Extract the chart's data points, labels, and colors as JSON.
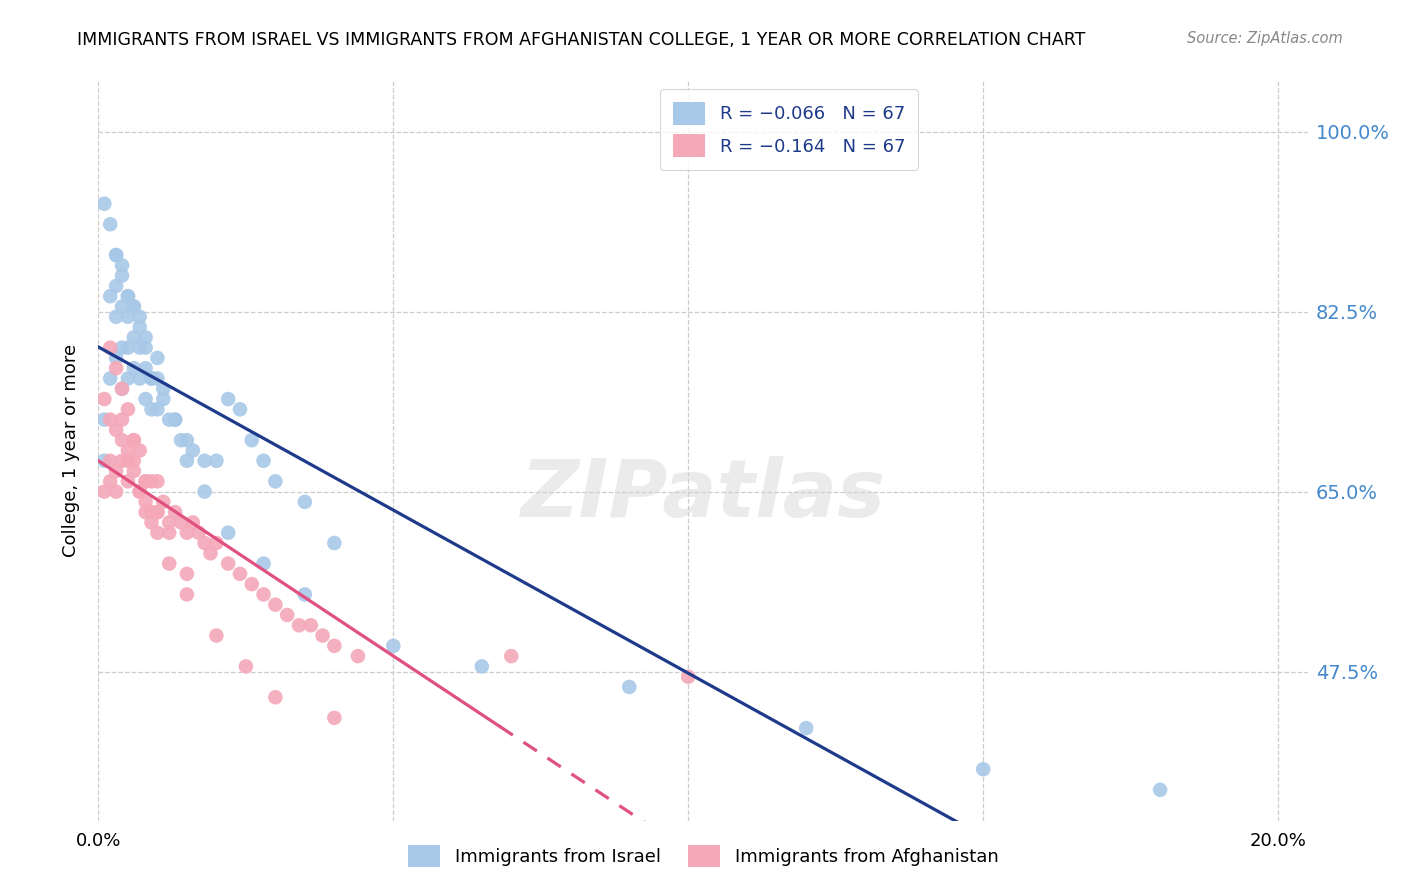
{
  "title": "IMMIGRANTS FROM ISRAEL VS IMMIGRANTS FROM AFGHANISTAN COLLEGE, 1 YEAR OR MORE CORRELATION CHART",
  "source": "Source: ZipAtlas.com",
  "ylabel": "College, 1 year or more",
  "ytick_labels": [
    "100.0%",
    "82.5%",
    "65.0%",
    "47.5%"
  ],
  "ytick_values": [
    1.0,
    0.825,
    0.65,
    0.475
  ],
  "ylim": [
    0.33,
    1.05
  ],
  "xlim": [
    0.0,
    0.205
  ],
  "color_israel": "#a8c8e8",
  "color_afghanistan": "#f4a8b8",
  "line_color_israel": "#1e3a8a",
  "line_color_afghanistan": "#e05080",
  "watermark": "ZIPatlas",
  "legend_r_israel": "R = -0.066",
  "legend_n_israel": "N = 67",
  "legend_r_afghanistan": "R = -0.164",
  "legend_n_afghanistan": "N = 67",
  "israel_x": [
    0.001,
    0.001,
    0.002,
    0.002,
    0.003,
    0.003,
    0.003,
    0.003,
    0.004,
    0.004,
    0.004,
    0.004,
    0.005,
    0.005,
    0.005,
    0.005,
    0.006,
    0.006,
    0.006,
    0.007,
    0.007,
    0.007,
    0.008,
    0.008,
    0.008,
    0.009,
    0.009,
    0.01,
    0.01,
    0.011,
    0.012,
    0.013,
    0.014,
    0.015,
    0.016,
    0.018,
    0.02,
    0.022,
    0.024,
    0.026,
    0.028,
    0.03,
    0.035,
    0.04,
    0.001,
    0.002,
    0.003,
    0.004,
    0.005,
    0.006,
    0.007,
    0.008,
    0.009,
    0.01,
    0.011,
    0.013,
    0.015,
    0.018,
    0.022,
    0.028,
    0.035,
    0.05,
    0.065,
    0.09,
    0.12,
    0.15,
    0.18
  ],
  "israel_y": [
    0.72,
    0.68,
    0.84,
    0.76,
    0.88,
    0.85,
    0.82,
    0.78,
    0.87,
    0.83,
    0.79,
    0.75,
    0.84,
    0.82,
    0.79,
    0.76,
    0.83,
    0.8,
    0.77,
    0.82,
    0.79,
    0.76,
    0.8,
    0.77,
    0.74,
    0.76,
    0.73,
    0.76,
    0.73,
    0.74,
    0.72,
    0.72,
    0.7,
    0.68,
    0.69,
    0.68,
    0.68,
    0.74,
    0.73,
    0.7,
    0.68,
    0.66,
    0.64,
    0.6,
    0.93,
    0.91,
    0.88,
    0.86,
    0.84,
    0.83,
    0.81,
    0.79,
    0.76,
    0.78,
    0.75,
    0.72,
    0.7,
    0.65,
    0.61,
    0.58,
    0.55,
    0.5,
    0.48,
    0.46,
    0.42,
    0.38,
    0.36
  ],
  "afghanistan_x": [
    0.001,
    0.002,
    0.002,
    0.003,
    0.003,
    0.004,
    0.004,
    0.005,
    0.005,
    0.006,
    0.006,
    0.007,
    0.007,
    0.008,
    0.008,
    0.009,
    0.009,
    0.01,
    0.01,
    0.011,
    0.012,
    0.013,
    0.014,
    0.015,
    0.016,
    0.017,
    0.018,
    0.019,
    0.02,
    0.022,
    0.024,
    0.026,
    0.028,
    0.03,
    0.032,
    0.034,
    0.036,
    0.038,
    0.04,
    0.044,
    0.001,
    0.002,
    0.003,
    0.004,
    0.005,
    0.006,
    0.007,
    0.008,
    0.009,
    0.01,
    0.012,
    0.015,
    0.02,
    0.025,
    0.03,
    0.04,
    0.002,
    0.003,
    0.004,
    0.005,
    0.006,
    0.008,
    0.01,
    0.012,
    0.015,
    0.07,
    0.1
  ],
  "afghanistan_y": [
    0.65,
    0.68,
    0.66,
    0.67,
    0.65,
    0.72,
    0.68,
    0.69,
    0.66,
    0.7,
    0.68,
    0.69,
    0.65,
    0.66,
    0.64,
    0.66,
    0.63,
    0.66,
    0.63,
    0.64,
    0.62,
    0.63,
    0.62,
    0.61,
    0.62,
    0.61,
    0.6,
    0.59,
    0.6,
    0.58,
    0.57,
    0.56,
    0.55,
    0.54,
    0.53,
    0.52,
    0.52,
    0.51,
    0.5,
    0.49,
    0.74,
    0.72,
    0.71,
    0.7,
    0.68,
    0.67,
    0.65,
    0.63,
    0.62,
    0.61,
    0.58,
    0.55,
    0.51,
    0.48,
    0.45,
    0.43,
    0.79,
    0.77,
    0.75,
    0.73,
    0.7,
    0.66,
    0.63,
    0.61,
    0.57,
    0.49,
    0.47
  ]
}
